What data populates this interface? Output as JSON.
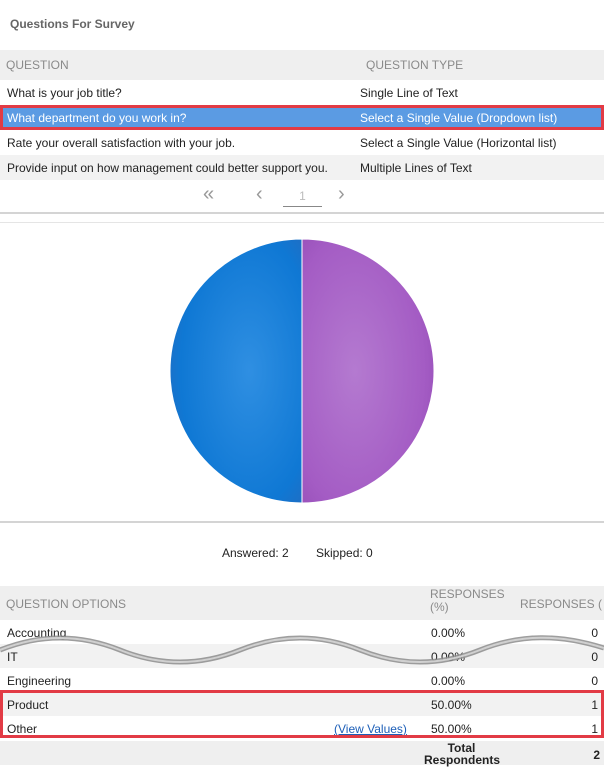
{
  "header": {
    "title": "Questions For Survey"
  },
  "questions": {
    "columns": [
      "QUESTION",
      "QUESTION TYPE"
    ],
    "rows": [
      {
        "question": "What is your job title?",
        "type": "Single Line of Text"
      },
      {
        "question": "What department do you work in?",
        "type": "Select a Single Value (Dropdown list)"
      },
      {
        "question": "Rate your overall satisfaction with your job.",
        "type": "Select a Single Value (Horizontal list)"
      },
      {
        "question": "Provide input on how management could better support you.",
        "type": "Multiple Lines of Text"
      }
    ],
    "selected_index": 1
  },
  "pager": {
    "first": "«",
    "prev": "‹",
    "page": "1",
    "next": "›"
  },
  "chart_data": {
    "type": "pie",
    "categories": [
      "Accounting",
      "IT",
      "Engineering",
      "Product",
      "Other"
    ],
    "values": [
      0,
      0,
      0,
      1,
      1
    ],
    "colors": {
      "Product": "#0f78d4",
      "Other": "#a45cc4"
    }
  },
  "stats": {
    "answered": "Answered: 2",
    "skipped": "Skipped: 0"
  },
  "options": {
    "columns": [
      "QUESTION OPTIONS",
      "RESPONSES (%)",
      "RESPONSES ("
    ],
    "rows": [
      {
        "option": "Accounting",
        "percent": "0.00%",
        "count": "0"
      },
      {
        "option": "IT",
        "percent": "0.00%",
        "count": "0"
      },
      {
        "option": "Engineering",
        "percent": "0.00%",
        "count": "0"
      },
      {
        "option": "Product",
        "percent": "50.00%",
        "count": "1"
      },
      {
        "option": "Other",
        "percent": "50.00%",
        "count": "1",
        "link": "(View Values)"
      }
    ],
    "total_label": "Total Respondents",
    "total_value": "2"
  }
}
